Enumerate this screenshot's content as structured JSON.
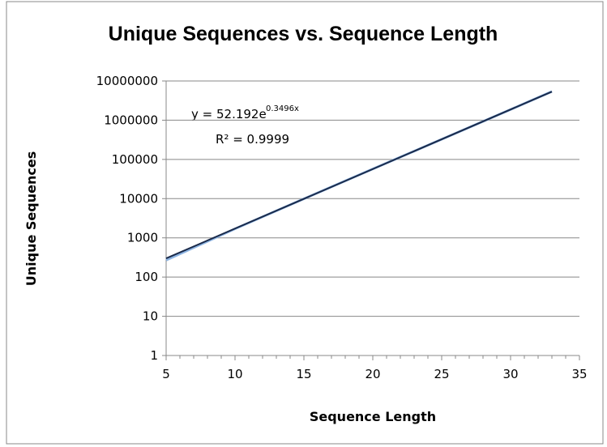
{
  "chart_data": {
    "type": "line",
    "title": "Unique Sequences vs. Sequence Length",
    "x_label": "Sequence Length",
    "y_label": "Unique Sequences",
    "annotations": [
      "y = 52.192e",
      "0.3496x",
      "R² = 0.9999"
    ],
    "series": [
      {
        "color": "#8db4e2",
        "x": [
          5,
          10,
          15,
          20,
          25,
          30,
          33
        ],
        "values": [
          270,
          1700,
          9900,
          57000,
          326000,
          1870000,
          5400000
        ]
      },
      {
        "color": "#1a2a4a",
        "x": [
          5,
          33
        ],
        "values": [
          300,
          5350000
        ]
      }
    ],
    "xlim": [
      5,
      35
    ],
    "xticks": [
      5,
      10,
      15,
      20,
      25,
      30,
      35
    ],
    "ylim": [
      1,
      10000000
    ],
    "yticks": [
      1,
      10,
      100,
      1000,
      10000,
      100000,
      1000000,
      10000000
    ],
    "log_y": true,
    "grid": true
  }
}
